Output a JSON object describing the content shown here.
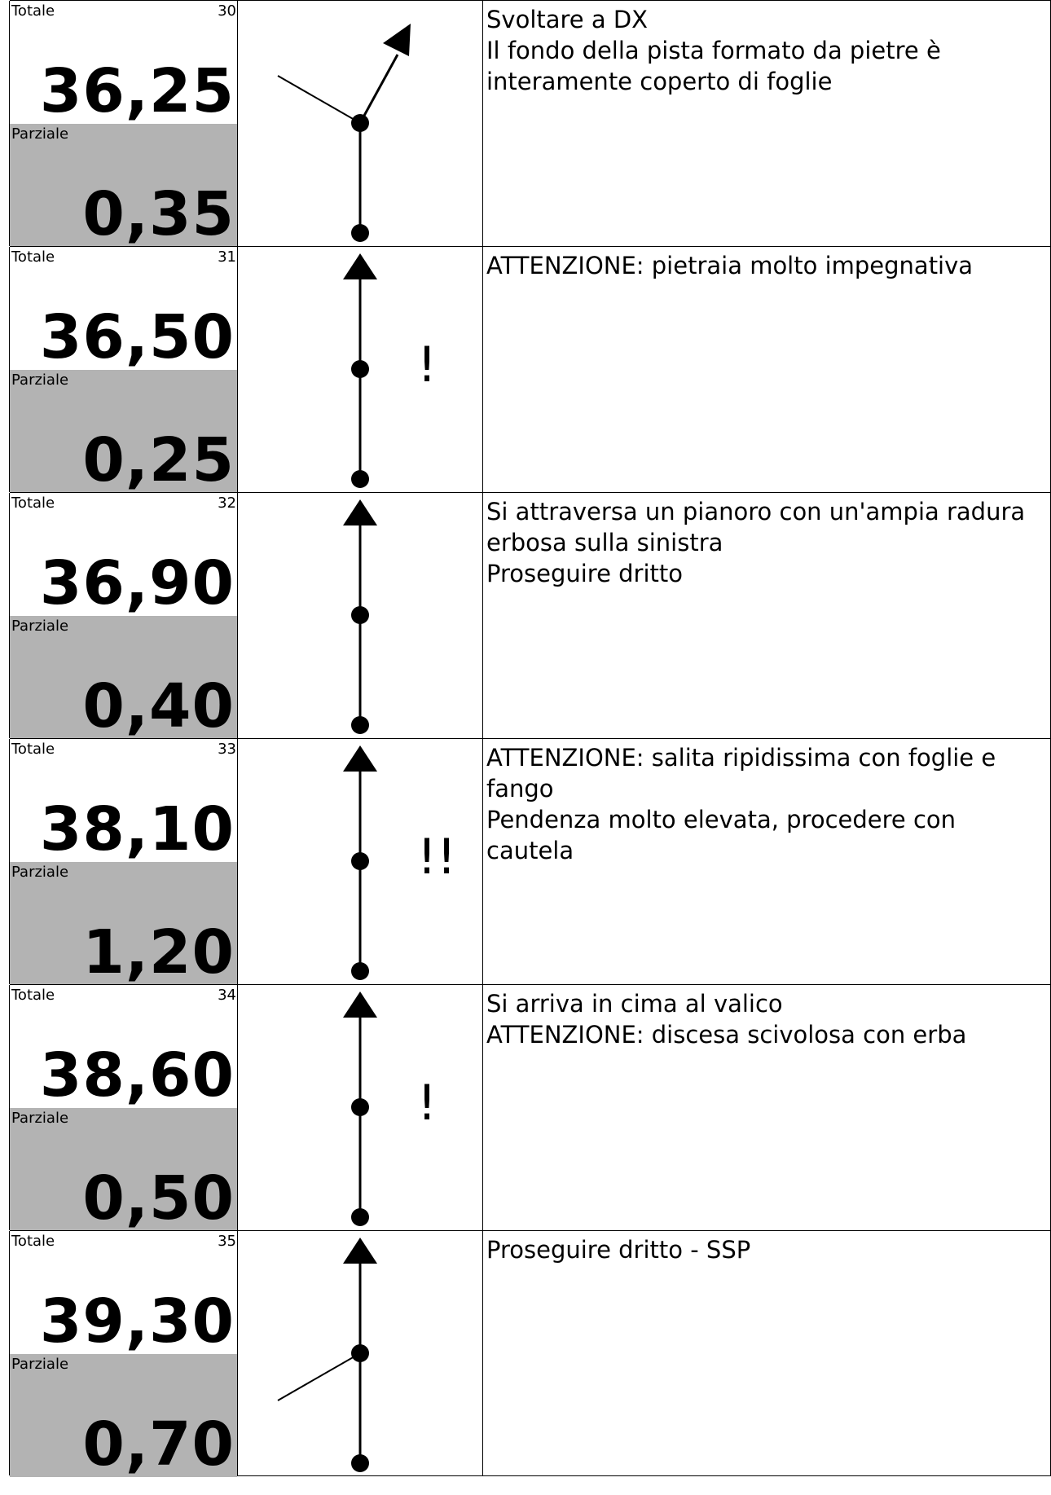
{
  "labels": {
    "totale": "Totale",
    "parziale": "Parziale"
  },
  "rows": [
    {
      "index": "30",
      "totale": "36,25",
      "parziale": "0,35",
      "warning": "",
      "lines": [
        "Svoltare a DX",
        "Il fondo della pista formato da pietre è interamente coperto di foglie"
      ],
      "maneuver": "right-turn-with-left-branch"
    },
    {
      "index": "31",
      "totale": "36,50",
      "parziale": "0,25",
      "warning": "!",
      "lines": [
        "ATTENZIONE: pietraia molto impegnativa"
      ],
      "maneuver": "straight"
    },
    {
      "index": "32",
      "totale": "36,90",
      "parziale": "0,40",
      "warning": "",
      "lines": [
        "Si attraversa un pianoro con un'ampia radura erbosa sulla sinistra",
        "Proseguire dritto"
      ],
      "maneuver": "straight"
    },
    {
      "index": "33",
      "totale": "38,10",
      "parziale": "1,20",
      "warning": "!!",
      "lines": [
        "ATTENZIONE: salita ripidissima con foglie e fango",
        "Pendenza molto elevata, procedere con cautela"
      ],
      "maneuver": "straight"
    },
    {
      "index": "34",
      "totale": "38,60",
      "parziale": "0,50",
      "warning": "!",
      "lines": [
        "Si arriva in cima al valico",
        "ATTENZIONE: discesa scivolosa con erba"
      ],
      "maneuver": "straight"
    },
    {
      "index": "35",
      "totale": "39,30",
      "parziale": "0,70",
      "warning": "",
      "lines": [
        "Proseguire dritto - SSP"
      ],
      "maneuver": "straight-with-left-branch"
    }
  ]
}
